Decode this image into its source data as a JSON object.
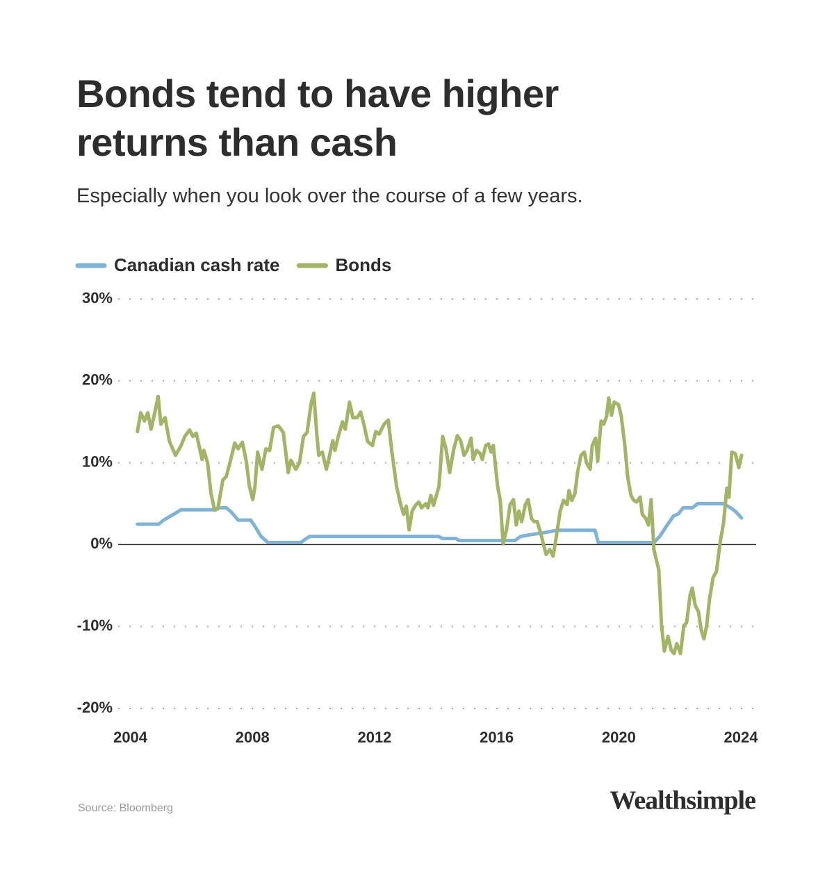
{
  "chart_data": {
    "type": "line",
    "title": "Bonds tend to have higher returns than cash",
    "subtitle": "Especially when you look over the course of a few years.",
    "source": "Source: Bloomberg",
    "logo": "Wealthsimple",
    "xlim": [
      2003.6,
      2024.5
    ],
    "xticks": [
      2004,
      2008,
      2012,
      2016,
      2020,
      2024
    ],
    "ylim": [
      -20,
      30
    ],
    "yticks": [
      {
        "value": -20,
        "label": "-20%"
      },
      {
        "value": -10,
        "label": "-10%"
      },
      {
        "value": 0,
        "label": "0%"
      },
      {
        "value": 10,
        "label": "10%"
      },
      {
        "value": 20,
        "label": "20%"
      },
      {
        "value": 30,
        "label": "30%"
      }
    ],
    "grid": true,
    "series": [
      {
        "name": "Canadian cash rate",
        "color": "#80b3d6",
        "x": [
          2004.23,
          2004.93,
          2005.09,
          2005.32,
          2005.55,
          2005.66,
          2006.8,
          2006.92,
          2007.14,
          2007.3,
          2007.53,
          2007.94,
          2008.08,
          2008.28,
          2008.51,
          2009.58,
          2009.76,
          2009.88,
          2014.09,
          2014.23,
          2014.66,
          2014.77,
          2016.6,
          2016.78,
          2017.17,
          2017.62,
          2017.96,
          2019.22,
          2019.33,
          2021.15,
          2021.34,
          2021.56,
          2021.79,
          2021.95,
          2022.11,
          2022.41,
          2022.59,
          2023.43,
          2023.66,
          2023.84,
          2024.02
        ],
        "values": [
          2.5,
          2.5,
          3.0,
          3.5,
          4.0,
          4.25,
          4.25,
          4.5,
          4.5,
          4.0,
          3.0,
          3.0,
          2.25,
          1.0,
          0.25,
          0.25,
          0.75,
          1.0,
          1.0,
          0.75,
          0.75,
          0.5,
          0.5,
          1.0,
          1.25,
          1.5,
          1.75,
          1.75,
          0.25,
          0.25,
          1.0,
          2.25,
          3.5,
          3.75,
          4.5,
          4.5,
          5.0,
          5.0,
          4.5,
          4.0,
          3.25
        ]
      },
      {
        "name": "Bonds",
        "color": "#a4b466",
        "x": [
          2004.23,
          2004.34,
          2004.46,
          2004.57,
          2004.68,
          2004.8,
          2004.91,
          2005.0,
          2005.14,
          2005.28,
          2005.48,
          2005.66,
          2005.78,
          2005.94,
          2006.05,
          2006.16,
          2006.35,
          2006.41,
          2006.53,
          2006.64,
          2006.76,
          2006.87,
          2007.03,
          2007.14,
          2007.26,
          2007.42,
          2007.53,
          2007.67,
          2007.8,
          2007.9,
          2008.01,
          2008.08,
          2008.17,
          2008.31,
          2008.44,
          2008.56,
          2008.69,
          2008.85,
          2009.01,
          2009.17,
          2009.26,
          2009.42,
          2009.54,
          2009.67,
          2009.79,
          2009.92,
          2010.01,
          2010.1,
          2010.17,
          2010.29,
          2010.42,
          2010.51,
          2010.63,
          2010.7,
          2010.81,
          2010.95,
          2011.04,
          2011.18,
          2011.29,
          2011.43,
          2011.54,
          2011.65,
          2011.77,
          2011.93,
          2012.04,
          2012.15,
          2012.31,
          2012.45,
          2012.56,
          2012.72,
          2012.84,
          2012.95,
          2013.04,
          2013.13,
          2013.23,
          2013.34,
          2013.45,
          2013.54,
          2013.68,
          2013.75,
          2013.84,
          2013.93,
          2014.11,
          2014.23,
          2014.34,
          2014.46,
          2014.59,
          2014.71,
          2014.82,
          2014.93,
          2015.03,
          2015.16,
          2015.23,
          2015.34,
          2015.46,
          2015.53,
          2015.64,
          2015.73,
          2015.82,
          2015.89,
          2016.03,
          2016.12,
          2016.21,
          2016.32,
          2016.44,
          2016.55,
          2016.64,
          2016.73,
          2016.82,
          2016.94,
          2017.03,
          2017.14,
          2017.23,
          2017.33,
          2017.46,
          2017.62,
          2017.74,
          2017.85,
          2017.96,
          2018.08,
          2018.19,
          2018.31,
          2018.37,
          2018.46,
          2018.56,
          2018.65,
          2018.76,
          2018.87,
          2018.94,
          2019.06,
          2019.13,
          2019.24,
          2019.31,
          2019.42,
          2019.51,
          2019.6,
          2019.67,
          2019.76,
          2019.85,
          2019.99,
          2020.08,
          2020.2,
          2020.29,
          2020.4,
          2020.49,
          2020.58,
          2020.7,
          2020.77,
          2020.88,
          2020.97,
          2021.06,
          2021.15,
          2021.31,
          2021.4,
          2021.49,
          2021.61,
          2021.72,
          2021.81,
          2021.9,
          2022.02,
          2022.13,
          2022.22,
          2022.34,
          2022.41,
          2022.5,
          2022.61,
          2022.7,
          2022.79,
          2022.88,
          2022.97,
          2023.09,
          2023.2,
          2023.32,
          2023.43,
          2023.54,
          2023.61,
          2023.7,
          2023.82,
          2023.93,
          2024.02
        ],
        "values": [
          13.8,
          16.1,
          15.1,
          16.1,
          14.1,
          16.1,
          18.1,
          14.7,
          15.5,
          12.6,
          10.9,
          12.1,
          13.2,
          14.0,
          13.2,
          13.6,
          10.4,
          11.5,
          10.0,
          6.3,
          4.2,
          4.5,
          7.9,
          8.3,
          10.0,
          12.4,
          11.7,
          12.5,
          10.1,
          7.1,
          5.5,
          7.1,
          11.3,
          9.2,
          11.7,
          11.5,
          14.3,
          14.5,
          13.7,
          8.8,
          10.3,
          9.2,
          10.0,
          13.2,
          13.7,
          17.2,
          18.5,
          13.8,
          10.9,
          11.3,
          9.2,
          10.6,
          12.7,
          11.5,
          13.2,
          15.0,
          14.1,
          17.4,
          15.5,
          15.5,
          16.2,
          14.7,
          12.6,
          12.1,
          13.8,
          13.5,
          14.7,
          15.2,
          11.5,
          7.1,
          5.1,
          3.7,
          4.7,
          1.8,
          4.1,
          4.8,
          5.2,
          4.5,
          5.0,
          4.5,
          6.0,
          4.8,
          7.1,
          13.2,
          11.7,
          8.8,
          11.6,
          13.3,
          12.7,
          10.9,
          11.5,
          13.0,
          10.4,
          11.5,
          11.1,
          10.4,
          12.1,
          12.3,
          11.3,
          12.1,
          7.1,
          5.4,
          0.1,
          1.8,
          4.9,
          5.5,
          2.4,
          4.1,
          2.8,
          4.9,
          5.5,
          3.2,
          2.8,
          2.8,
          1.1,
          -1.2,
          -0.6,
          -1.4,
          1.1,
          4.1,
          5.4,
          4.9,
          6.6,
          5.4,
          6.2,
          8.8,
          10.9,
          11.3,
          10.0,
          9.2,
          12.1,
          13.0,
          10.2,
          15.1,
          14.7,
          15.7,
          17.9,
          15.8,
          17.4,
          17.1,
          15.7,
          12.1,
          8.3,
          6.0,
          5.4,
          5.2,
          5.8,
          3.7,
          3.2,
          2.4,
          5.5,
          -0.6,
          -3.1,
          -9.8,
          -13.0,
          -11.2,
          -12.9,
          -13.3,
          -12.1,
          -13.3,
          -9.9,
          -9.5,
          -6.1,
          -5.3,
          -7.4,
          -8.2,
          -10.4,
          -11.5,
          -9.9,
          -6.7,
          -4.0,
          -3.3,
          0.3,
          2.6,
          6.9,
          5.8,
          11.3,
          11.1,
          9.4,
          10.9
        ]
      }
    ]
  }
}
